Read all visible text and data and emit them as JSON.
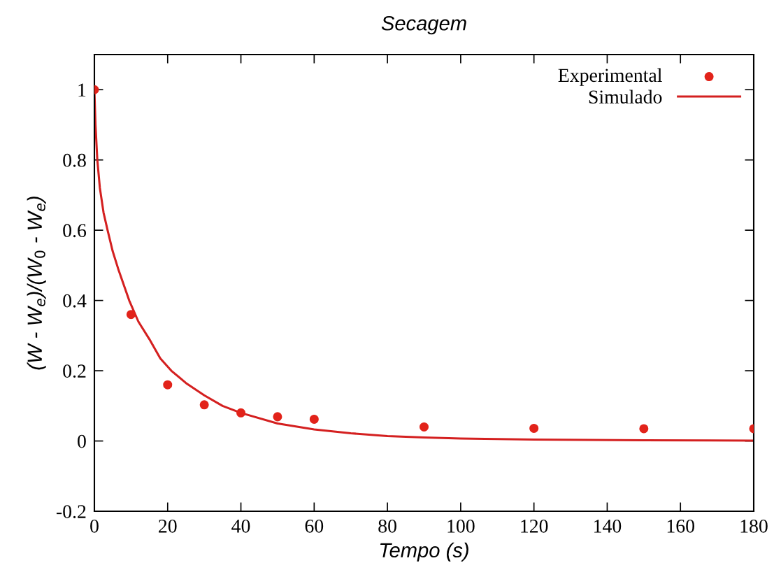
{
  "chart_data": {
    "type": "scatter",
    "title": "Secagem",
    "xlabel": "Tempo (s)",
    "ylabel": "(W - W$_{e}$)/(W$_{0}$ - W$_{e}$)",
    "xlim": [
      0,
      180
    ],
    "xticks": [
      0,
      20,
      40,
      60,
      80,
      100,
      120,
      140,
      160,
      180
    ],
    "ylim": [
      -0.2,
      1.1
    ],
    "yticks": [
      -0.2,
      0,
      0.2,
      0.4,
      0.6,
      0.8,
      1
    ],
    "grid": false,
    "legend": "top right",
    "series": [
      {
        "name": "Experimental",
        "marker": "circle",
        "color": "#e2231a",
        "x": [
          0,
          10,
          20,
          30,
          40,
          50,
          60,
          90,
          120,
          150,
          180
        ],
        "values": [
          1,
          0.36,
          0.16,
          0.103,
          0.08,
          0.069,
          0.062,
          0.04,
          0.036,
          0.035,
          0.035
        ]
      },
      {
        "name": "Simulado",
        "type": "line",
        "marker": "none",
        "line_style": "solid",
        "color": "#d42020",
        "x": [
          0,
          0.3,
          0.8,
          1.5,
          2.5,
          3.6,
          5,
          6.5,
          8,
          9.5,
          12,
          15,
          18,
          21,
          25,
          30,
          35,
          40,
          50,
          60,
          70,
          80,
          90,
          100,
          120,
          150,
          180
        ],
        "values": [
          1,
          0.9,
          0.8,
          0.72,
          0.65,
          0.6,
          0.54,
          0.49,
          0.445,
          0.4,
          0.34,
          0.29,
          0.235,
          0.2,
          0.165,
          0.13,
          0.1,
          0.08,
          0.05,
          0.033,
          0.022,
          0.014,
          0.01,
          0.007,
          0.004,
          0.002,
          0.001
        ]
      }
    ]
  }
}
